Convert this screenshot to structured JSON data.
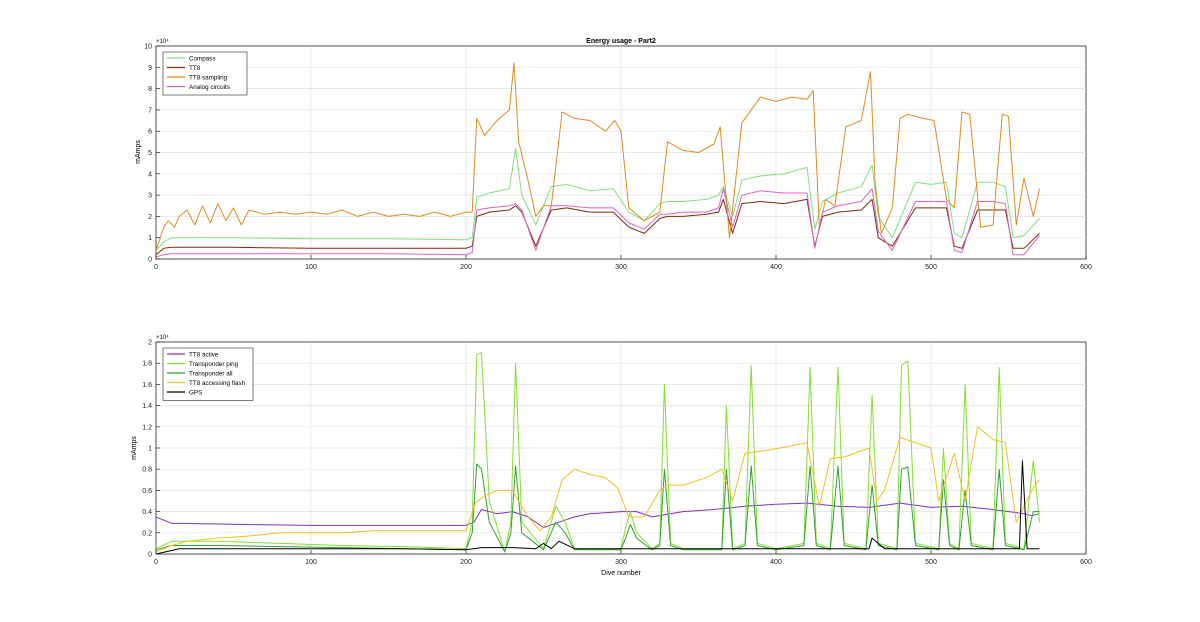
{
  "chart_data": [
    {
      "type": "line",
      "title": "Energy usage - Part2",
      "xlabel": "",
      "ylabel": "mAmps",
      "xlim": [
        0,
        600
      ],
      "ylim": [
        0,
        10
      ],
      "y_exponent_label": "×10⁴",
      "xticks": [
        "0",
        "100",
        "200",
        "300",
        "400",
        "500",
        "600"
      ],
      "yticks": [
        "0",
        "1",
        "2",
        "3",
        "4",
        "5",
        "6",
        "7",
        "8",
        "9",
        "10"
      ],
      "grid": true,
      "legend_position": "top-left",
      "series": [
        {
          "name": "Compass",
          "color": "#7fe07f",
          "x": [
            0,
            5,
            10,
            50,
            100,
            150,
            200,
            204,
            207,
            215,
            228,
            232,
            236,
            245,
            255,
            265,
            280,
            295,
            305,
            315,
            325,
            330,
            340,
            355,
            363,
            366,
            372,
            378,
            390,
            405,
            420,
            425,
            430,
            440,
            455,
            462,
            466,
            475,
            490,
            500,
            510,
            515,
            520,
            530,
            540,
            548,
            553,
            560,
            570
          ],
          "values": [
            0.4,
            0.8,
            1.0,
            1.0,
            0.95,
            0.95,
            0.9,
            1.0,
            2.9,
            3.1,
            3.3,
            5.2,
            3.0,
            1.6,
            3.4,
            3.5,
            3.2,
            3.3,
            2.2,
            1.8,
            2.6,
            2.7,
            2.7,
            2.8,
            3.0,
            3.4,
            2.0,
            3.7,
            3.9,
            4.0,
            4.3,
            1.4,
            2.7,
            3.1,
            3.4,
            4.4,
            2.0,
            1.0,
            3.6,
            3.5,
            3.6,
            1.2,
            1.0,
            3.6,
            3.6,
            3.4,
            1.0,
            1.1,
            1.9
          ]
        },
        {
          "name": "TT8",
          "color": "#7a2a0a",
          "x": [
            0,
            5,
            10,
            50,
            100,
            150,
            200,
            204,
            207,
            215,
            228,
            232,
            236,
            245,
            255,
            265,
            280,
            295,
            305,
            315,
            325,
            330,
            340,
            355,
            363,
            366,
            372,
            378,
            390,
            405,
            420,
            425,
            430,
            440,
            455,
            462,
            466,
            475,
            490,
            500,
            510,
            515,
            520,
            530,
            540,
            548,
            553,
            560,
            570
          ],
          "values": [
            0.2,
            0.5,
            0.55,
            0.55,
            0.5,
            0.5,
            0.5,
            0.6,
            2.0,
            2.2,
            2.3,
            2.5,
            2.2,
            0.6,
            2.3,
            2.4,
            2.2,
            2.2,
            1.5,
            1.2,
            1.9,
            2.0,
            2.0,
            2.1,
            2.2,
            2.8,
            1.2,
            2.6,
            2.7,
            2.6,
            2.8,
            0.6,
            2.0,
            2.2,
            2.3,
            2.8,
            1.0,
            0.6,
            2.4,
            2.4,
            2.4,
            0.6,
            0.5,
            2.3,
            2.3,
            2.3,
            0.5,
            0.5,
            1.2
          ]
        },
        {
          "name": "TT8 sampling",
          "color": "#e08a1e",
          "x": [
            0,
            5,
            8,
            12,
            15,
            20,
            25,
            30,
            35,
            40,
            45,
            50,
            55,
            60,
            70,
            80,
            90,
            100,
            110,
            120,
            130,
            140,
            150,
            160,
            170,
            180,
            190,
            200,
            204,
            207,
            212,
            220,
            228,
            231,
            234,
            240,
            245,
            250,
            255,
            262,
            270,
            280,
            290,
            296,
            300,
            305,
            315,
            325,
            330,
            340,
            350,
            360,
            364,
            366,
            370,
            378,
            384,
            390,
            400,
            410,
            420,
            424,
            428,
            432,
            438,
            445,
            455,
            461,
            464,
            468,
            475,
            480,
            485,
            495,
            502,
            510,
            515,
            520,
            525,
            532,
            540,
            546,
            550,
            555,
            560,
            566,
            570
          ],
          "values": [
            0.4,
            1.5,
            1.8,
            1.5,
            2.0,
            2.3,
            1.6,
            2.5,
            1.7,
            2.6,
            1.8,
            2.4,
            1.6,
            2.3,
            2.1,
            2.2,
            2.1,
            2.2,
            2.1,
            2.3,
            2.0,
            2.2,
            2.0,
            2.1,
            2.0,
            2.2,
            2.0,
            2.2,
            2.2,
            6.6,
            5.8,
            6.5,
            7.0,
            9.2,
            5.5,
            3.7,
            2.0,
            2.5,
            2.5,
            6.9,
            6.6,
            6.5,
            6.0,
            6.5,
            6.0,
            2.4,
            1.8,
            2.2,
            5.5,
            5.1,
            5.0,
            5.4,
            6.2,
            4.4,
            1.0,
            6.4,
            7.0,
            7.6,
            7.4,
            7.6,
            7.5,
            7.9,
            1.5,
            2.8,
            2.5,
            6.2,
            6.5,
            8.8,
            3.5,
            1.2,
            2.4,
            6.6,
            6.8,
            6.6,
            6.5,
            2.8,
            2.4,
            6.9,
            6.8,
            1.5,
            1.6,
            6.8,
            6.7,
            1.6,
            3.8,
            2.0,
            3.3
          ]
        },
        {
          "name": "Analog circuits",
          "color": "#e060c0",
          "x": [
            0,
            5,
            10,
            50,
            100,
            150,
            200,
            204,
            207,
            215,
            228,
            232,
            236,
            245,
            255,
            265,
            280,
            295,
            305,
            315,
            325,
            330,
            340,
            355,
            363,
            366,
            372,
            378,
            390,
            405,
            420,
            425,
            430,
            440,
            455,
            462,
            466,
            475,
            490,
            500,
            510,
            515,
            520,
            530,
            540,
            548,
            553,
            560,
            570
          ],
          "values": [
            0.1,
            0.2,
            0.25,
            0.25,
            0.25,
            0.25,
            0.2,
            0.3,
            2.3,
            2.4,
            2.5,
            2.6,
            2.3,
            0.4,
            2.5,
            2.5,
            2.4,
            2.4,
            1.7,
            1.4,
            2.1,
            2.1,
            2.2,
            2.2,
            2.4,
            3.3,
            1.5,
            3.0,
            3.2,
            3.1,
            3.1,
            0.5,
            2.2,
            2.5,
            2.7,
            3.3,
            1.3,
            0.4,
            2.7,
            2.7,
            2.7,
            0.4,
            0.3,
            2.7,
            2.7,
            2.6,
            0.2,
            0.2,
            1.1
          ]
        }
      ]
    },
    {
      "type": "line",
      "title": "",
      "xlabel": "Dive number",
      "ylabel": "mAmps",
      "xlim": [
        0,
        600
      ],
      "ylim": [
        0,
        2
      ],
      "y_exponent_label": "×10⁴",
      "xticks": [
        "0",
        "100",
        "200",
        "300",
        "400",
        "500",
        "600"
      ],
      "yticks": [
        "0",
        "0.2",
        "0.4",
        "0.6",
        "0.8",
        "1",
        "1.2",
        "1.4",
        "1.6",
        "1.8",
        "2"
      ],
      "grid": true,
      "legend_position": "top-left",
      "series": [
        {
          "name": "TT8 active",
          "color": "#8030c0",
          "x": [
            0,
            10,
            50,
            100,
            150,
            200,
            205,
            210,
            220,
            230,
            240,
            250,
            260,
            270,
            280,
            300,
            310,
            320,
            340,
            360,
            380,
            400,
            420,
            440,
            460,
            470,
            480,
            500,
            520,
            540,
            560,
            565,
            570
          ],
          "values": [
            0.35,
            0.29,
            0.28,
            0.27,
            0.27,
            0.27,
            0.3,
            0.42,
            0.38,
            0.4,
            0.35,
            0.25,
            0.3,
            0.35,
            0.38,
            0.4,
            0.4,
            0.35,
            0.4,
            0.42,
            0.45,
            0.47,
            0.48,
            0.45,
            0.44,
            0.46,
            0.48,
            0.44,
            0.45,
            0.42,
            0.38,
            0.36,
            0.38
          ]
        },
        {
          "name": "Transponder ping",
          "color": "#80e030",
          "x": [
            0,
            10,
            40,
            80,
            120,
            160,
            200,
            204,
            207,
            210,
            215,
            225,
            229,
            232,
            236,
            250,
            258,
            264,
            270,
            300,
            303,
            306,
            310,
            320,
            325,
            328,
            332,
            340,
            365,
            368,
            372,
            380,
            384,
            388,
            400,
            418,
            422,
            426,
            435,
            440,
            444,
            458,
            462,
            466,
            478,
            481,
            485,
            490,
            505,
            508,
            512,
            518,
            522,
            526,
            540,
            544,
            548,
            560,
            566,
            570
          ],
          "values": [
            0.05,
            0.12,
            0.12,
            0.1,
            0.08,
            0.07,
            0.05,
            0.3,
            1.88,
            1.9,
            0.5,
            0.02,
            0.3,
            1.8,
            0.3,
            0.05,
            0.45,
            0.3,
            0.05,
            0.05,
            0.25,
            0.4,
            0.2,
            0.05,
            0.1,
            1.6,
            0.1,
            0.05,
            0.05,
            1.4,
            0.05,
            0.1,
            1.78,
            0.1,
            0.05,
            0.1,
            1.76,
            0.1,
            0.05,
            1.76,
            0.1,
            0.05,
            1.5,
            0.1,
            0.05,
            1.78,
            1.82,
            0.1,
            0.05,
            1.0,
            0.1,
            0.05,
            1.6,
            0.1,
            0.05,
            1.76,
            0.1,
            0.05,
            0.88,
            0.3
          ]
        },
        {
          "name": "Transponder all",
          "color": "#30a030",
          "x": [
            0,
            10,
            40,
            80,
            120,
            160,
            200,
            204,
            207,
            210,
            215,
            225,
            229,
            232,
            236,
            250,
            258,
            264,
            270,
            300,
            303,
            306,
            310,
            320,
            325,
            328,
            332,
            340,
            365,
            368,
            372,
            380,
            384,
            388,
            400,
            418,
            422,
            426,
            435,
            440,
            444,
            458,
            462,
            466,
            478,
            481,
            485,
            490,
            505,
            508,
            512,
            518,
            522,
            526,
            540,
            544,
            548,
            560,
            566,
            570
          ],
          "values": [
            0.04,
            0.08,
            0.08,
            0.07,
            0.06,
            0.05,
            0.04,
            0.2,
            0.85,
            0.8,
            0.3,
            0.02,
            0.2,
            0.83,
            0.2,
            0.04,
            0.3,
            0.2,
            0.04,
            0.04,
            0.15,
            0.28,
            0.15,
            0.04,
            0.08,
            0.8,
            0.08,
            0.04,
            0.04,
            0.8,
            0.04,
            0.08,
            0.83,
            0.08,
            0.04,
            0.08,
            0.83,
            0.08,
            0.04,
            0.83,
            0.08,
            0.04,
            0.65,
            0.08,
            0.04,
            0.8,
            0.82,
            0.08,
            0.04,
            0.7,
            0.08,
            0.04,
            0.6,
            0.08,
            0.04,
            0.8,
            0.08,
            0.04,
            0.4,
            0.4
          ]
        },
        {
          "name": "TT8 accessing flash",
          "color": "#f0c020",
          "x": [
            0,
            10,
            20,
            40,
            60,
            80,
            100,
            120,
            140,
            160,
            180,
            200,
            206,
            212,
            220,
            230,
            240,
            248,
            255,
            262,
            270,
            280,
            290,
            298,
            305,
            315,
            325,
            330,
            340,
            355,
            365,
            372,
            380,
            395,
            410,
            420,
            428,
            435,
            445,
            460,
            465,
            470,
            480,
            490,
            500,
            505,
            515,
            522,
            530,
            540,
            548,
            555,
            565,
            570
          ],
          "values": [
            0.02,
            0.08,
            0.12,
            0.15,
            0.17,
            0.2,
            0.2,
            0.2,
            0.22,
            0.22,
            0.22,
            0.22,
            0.48,
            0.55,
            0.6,
            0.6,
            0.35,
            0.22,
            0.35,
            0.7,
            0.8,
            0.75,
            0.72,
            0.62,
            0.35,
            0.35,
            0.6,
            0.65,
            0.65,
            0.72,
            0.8,
            0.5,
            0.95,
            0.98,
            1.02,
            1.05,
            0.45,
            0.9,
            0.92,
            1.0,
            0.5,
            0.6,
            1.1,
            1.05,
            1.0,
            0.5,
            0.95,
            0.5,
            1.2,
            1.08,
            1.05,
            0.3,
            0.6,
            0.7
          ]
        },
        {
          "name": "GPS",
          "color": "#000000",
          "x": [
            0,
            15,
            40,
            80,
            120,
            160,
            200,
            210,
            230,
            245,
            250,
            255,
            260,
            270,
            290,
            310,
            330,
            350,
            380,
            400,
            430,
            455,
            460,
            462,
            470,
            500,
            540,
            557,
            559,
            562,
            570
          ],
          "values": [
            0.0,
            0.05,
            0.05,
            0.05,
            0.05,
            0.05,
            0.04,
            0.06,
            0.06,
            0.05,
            0.1,
            0.05,
            0.12,
            0.05,
            0.05,
            0.05,
            0.05,
            0.05,
            0.05,
            0.05,
            0.05,
            0.05,
            0.05,
            0.15,
            0.05,
            0.05,
            0.05,
            0.05,
            0.88,
            0.05,
            0.05
          ]
        }
      ]
    }
  ]
}
